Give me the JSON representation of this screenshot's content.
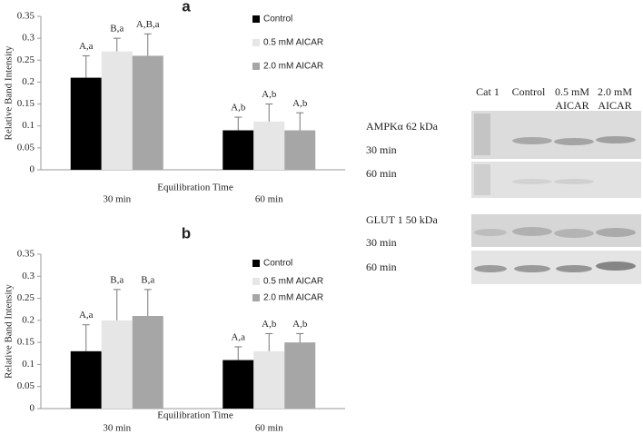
{
  "chart_data": [
    {
      "type": "bar",
      "title": "a",
      "xlabel": "Equilibration Time",
      "ylabel": "Relative Band Intensity",
      "categories": [
        "30 min",
        "60  min"
      ],
      "ylim": [
        0,
        0.35
      ],
      "yticks": [
        0,
        0.05,
        0.1,
        0.15,
        0.2,
        0.25,
        0.3,
        0.35
      ],
      "series": [
        {
          "name": "Control",
          "color": "#000000",
          "values": [
            0.21,
            0.09
          ],
          "errors": [
            0.05,
            0.03
          ],
          "annotations": [
            "A,a",
            "A,b"
          ]
        },
        {
          "name": "0.5 mM AICAR",
          "color": "#e6e6e6",
          "values": [
            0.27,
            0.11
          ],
          "errors": [
            0.03,
            0.04
          ],
          "annotations": [
            "B,a",
            "A,b"
          ]
        },
        {
          "name": "2.0 mM AICAR",
          "color": "#a6a6a6",
          "values": [
            0.26,
            0.09
          ],
          "errors": [
            0.05,
            0.04
          ],
          "annotations": [
            "A,B,a",
            "A,b"
          ]
        }
      ]
    },
    {
      "type": "bar",
      "title": "b",
      "xlabel": "Equilibration Time",
      "ylabel": "Relative Band Intensity",
      "categories": [
        "30 min",
        "60 min"
      ],
      "ylim": [
        0,
        0.35
      ],
      "yticks": [
        0,
        0.05,
        0.1,
        0.15,
        0.2,
        0.25,
        0.3,
        0.35
      ],
      "series": [
        {
          "name": "Control",
          "color": "#000000",
          "values": [
            0.13,
            0.11
          ],
          "errors": [
            0.06,
            0.03
          ],
          "annotations": [
            "A,a",
            "A,a"
          ]
        },
        {
          "name": "0.5 mM AICAR",
          "color": "#e6e6e6",
          "values": [
            0.2,
            0.13
          ],
          "errors": [
            0.07,
            0.04
          ],
          "annotations": [
            "B,a",
            "A,b"
          ]
        },
        {
          "name": "2.0 mM AICAR",
          "color": "#a6a6a6",
          "values": [
            0.21,
            0.15
          ],
          "errors": [
            0.06,
            0.02
          ],
          "annotations": [
            "B,a",
            "A,b"
          ]
        }
      ]
    }
  ],
  "blot": {
    "lanes": [
      [
        "Cat 1"
      ],
      [
        "Control"
      ],
      [
        "0.5 mM",
        "AICAR"
      ],
      [
        "2.0 mM",
        "AICAR"
      ]
    ],
    "rows": [
      "AMPKα 62 kDa",
      "30 min",
      "60 min",
      "GLUT 1 50 kDa",
      "30 min",
      "60 min"
    ]
  }
}
